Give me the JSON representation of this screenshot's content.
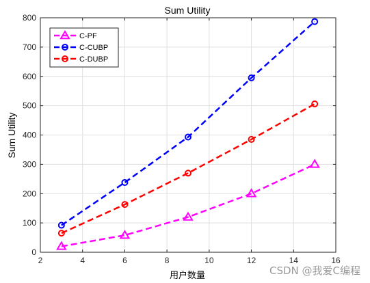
{
  "chart_data": {
    "type": "line",
    "title": "Sum Utility",
    "xlabel": "用户数量",
    "ylabel": "Sum Utility",
    "xlim": [
      2,
      16
    ],
    "ylim": [
      0,
      800
    ],
    "xticks": [
      "2",
      "4",
      "6",
      "8",
      "10",
      "12",
      "14",
      "16"
    ],
    "yticks": [
      "0",
      "100",
      "200",
      "300",
      "400",
      "500",
      "600",
      "700",
      "800"
    ],
    "x": [
      3,
      6,
      9,
      12,
      15
    ],
    "grid": true,
    "legend_position": "top-left",
    "series": [
      {
        "name": "C-PF",
        "values": [
          20,
          58,
          120,
          200,
          300
        ],
        "color": "#ff00ff",
        "marker": "triangle"
      },
      {
        "name": "C-CUBP",
        "values": [
          92,
          238,
          393,
          595,
          787
        ],
        "color": "#0000ff",
        "marker": "circle"
      },
      {
        "name": "C-DUBP",
        "values": [
          65,
          163,
          270,
          385,
          506
        ],
        "color": "#ff0000",
        "marker": "circle"
      }
    ]
  },
  "watermark": "CSDN @我爱C编程"
}
